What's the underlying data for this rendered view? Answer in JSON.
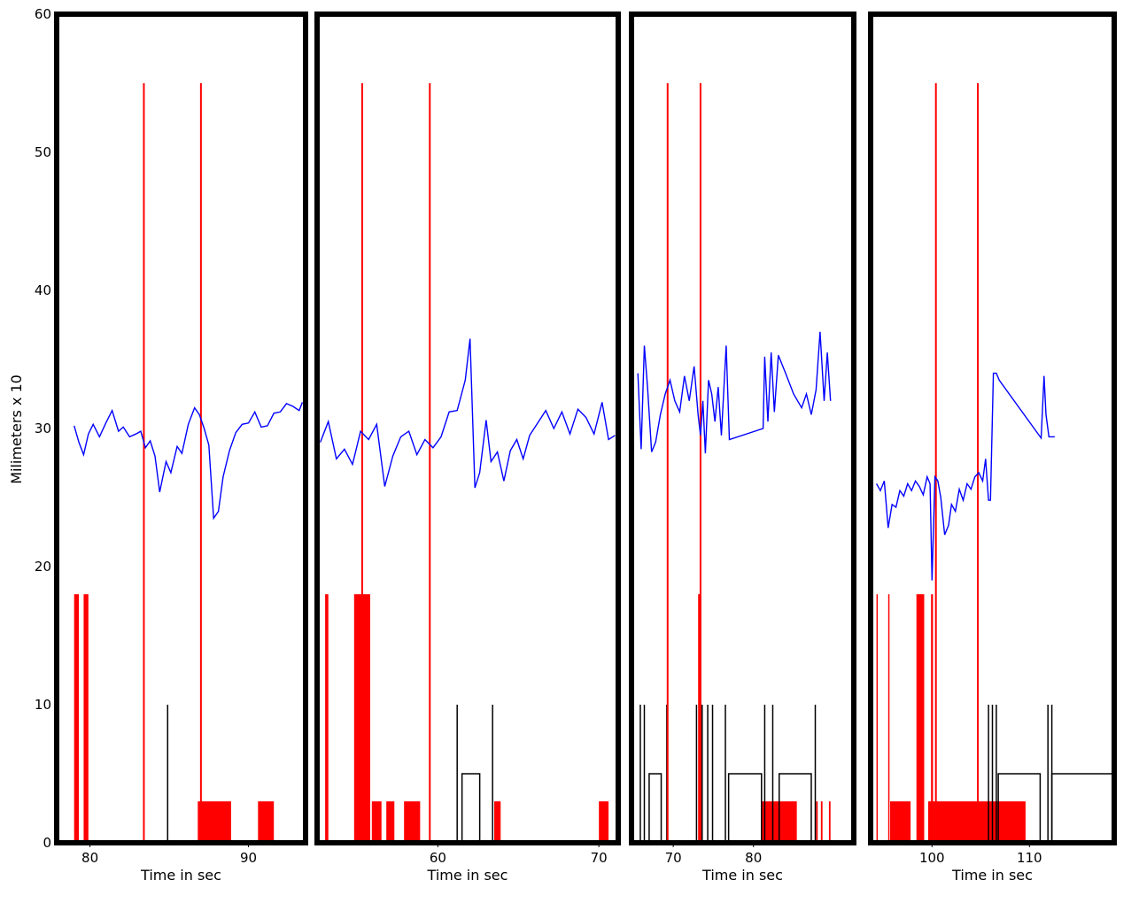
{
  "colors": {
    "trace": "#0000ff",
    "event": "#ff0000",
    "marker": "#000000",
    "frame": "#000000"
  },
  "ylabel": "Milimeters x 10",
  "yticks": [
    0,
    10,
    20,
    30,
    40,
    50,
    60
  ],
  "chart_data": [
    {
      "type": "line",
      "panel": 1,
      "xlabel": "Time in sec",
      "xlim": [
        77.9,
        93.6
      ],
      "ylim": [
        0,
        60
      ],
      "xticks": [
        80,
        90
      ],
      "grid": false,
      "series": [
        {
          "kind": "position",
          "color": "blue",
          "x": [
            79.0,
            79.3,
            79.6,
            79.9,
            80.2,
            80.6,
            81.0,
            81.4,
            81.8,
            82.1,
            82.5,
            82.9,
            83.2,
            83.5,
            83.8,
            84.1,
            84.4,
            84.8,
            85.1,
            85.5,
            85.8,
            86.2,
            86.6,
            86.9,
            87.2,
            87.5,
            87.8,
            88.1,
            88.4,
            88.8,
            89.2,
            89.6,
            90.0,
            90.4,
            90.8,
            91.2,
            91.6,
            92.0,
            92.4,
            92.8,
            93.2,
            93.4
          ],
          "y": [
            30.2,
            29.0,
            28.1,
            29.6,
            30.3,
            29.4,
            30.4,
            31.3,
            29.8,
            30.1,
            29.4,
            29.6,
            29.8,
            28.6,
            29.1,
            28.0,
            25.4,
            27.6,
            26.8,
            28.7,
            28.2,
            30.3,
            31.5,
            31.0,
            30.0,
            28.8,
            23.5,
            24.0,
            26.5,
            28.4,
            29.7,
            30.3,
            30.4,
            31.2,
            30.1,
            30.2,
            31.1,
            31.2,
            31.8,
            31.6,
            31.3,
            31.9
          ]
        },
        {
          "kind": "event-lines",
          "color": "red",
          "x": [
            83.4,
            87.0
          ],
          "height": 55
        },
        {
          "kind": "event-bars",
          "color": "red",
          "segments": [
            [
              79.0,
              79.3,
              18
            ],
            [
              79.6,
              79.9,
              18
            ],
            [
              86.8,
              88.9,
              3
            ],
            [
              90.6,
              91.6,
              3
            ]
          ]
        },
        {
          "kind": "markers",
          "color": "black",
          "spikes": [
            [
              84.9,
              10
            ]
          ],
          "boxes": []
        }
      ]
    },
    {
      "type": "line",
      "panel": 2,
      "xlabel": "Time in sec",
      "xlim": [
        52.5,
        71.2
      ],
      "ylim": [
        0,
        60
      ],
      "xticks": [
        60,
        70
      ],
      "grid": false,
      "series": [
        {
          "kind": "position",
          "color": "blue",
          "x": [
            52.7,
            53.2,
            53.7,
            54.2,
            54.7,
            55.2,
            55.7,
            56.2,
            56.7,
            57.2,
            57.7,
            58.2,
            58.7,
            59.2,
            59.7,
            60.2,
            60.7,
            61.2,
            61.7,
            62.0,
            62.3,
            62.6,
            63.0,
            63.3,
            63.7,
            64.1,
            64.5,
            64.9,
            65.3,
            65.7,
            66.2,
            66.7,
            67.2,
            67.7,
            68.2,
            68.7,
            69.2,
            69.7,
            70.2,
            70.6,
            71.0
          ],
          "y": [
            29.0,
            30.5,
            27.8,
            28.5,
            27.4,
            29.8,
            29.2,
            30.3,
            25.8,
            28.0,
            29.4,
            29.8,
            28.1,
            29.2,
            28.6,
            29.4,
            31.2,
            31.3,
            33.5,
            36.5,
            25.7,
            26.8,
            30.6,
            27.6,
            28.3,
            26.2,
            28.4,
            29.2,
            27.8,
            29.5,
            30.4,
            31.3,
            30.0,
            31.2,
            29.6,
            31.4,
            30.8,
            29.6,
            31.9,
            29.2,
            29.5
          ]
        },
        {
          "kind": "event-lines",
          "color": "red",
          "x": [
            55.3,
            59.5
          ],
          "height": 55
        },
        {
          "kind": "event-bars",
          "color": "red",
          "segments": [
            [
              53.0,
              53.2,
              18
            ],
            [
              54.8,
              55.8,
              18
            ],
            [
              55.9,
              56.5,
              3
            ],
            [
              56.8,
              57.3,
              3
            ],
            [
              57.9,
              58.9,
              3
            ],
            [
              63.5,
              63.9,
              3
            ],
            [
              70.0,
              70.6,
              3
            ]
          ]
        },
        {
          "kind": "markers",
          "color": "black",
          "spikes": [
            [
              61.2,
              10
            ],
            [
              63.4,
              10
            ]
          ],
          "boxes": [
            [
              61.5,
              62.6,
              5
            ]
          ]
        }
      ]
    },
    {
      "type": "line",
      "panel": 3,
      "xlabel": "Time in sec",
      "xlim": [
        64.8,
        92.5
      ],
      "ylim": [
        0,
        60
      ],
      "xticks": [
        70,
        80
      ],
      "grid": false,
      "series": [
        {
          "kind": "position",
          "color": "blue",
          "x": [
            65.6,
            66.0,
            66.4,
            66.8,
            67.3,
            67.8,
            68.4,
            69.0,
            69.6,
            70.2,
            70.8,
            71.4,
            72.0,
            72.6,
            73.1,
            73.4,
            73.7,
            74.0,
            74.4,
            74.8,
            75.2,
            75.6,
            76.0,
            76.6,
            77.0,
            81.2,
            81.4,
            81.8,
            82.2,
            82.6,
            83.1,
            84.0,
            85.0,
            86.0,
            86.6,
            87.2,
            87.8,
            88.3,
            88.8,
            89.2,
            89.6
          ],
          "y": [
            34.0,
            28.5,
            36.0,
            33.0,
            28.3,
            29.0,
            31.0,
            32.5,
            33.5,
            32.0,
            31.2,
            33.8,
            32.0,
            34.5,
            31.0,
            29.5,
            32.0,
            28.2,
            33.5,
            32.5,
            30.5,
            33.0,
            29.5,
            36.0,
            29.2,
            30.0,
            35.2,
            30.5,
            35.5,
            31.2,
            35.3,
            34.0,
            32.5,
            31.5,
            32.5,
            31.0,
            32.8,
            37.0,
            32.0,
            35.5,
            32.0
          ]
        },
        {
          "kind": "event-lines",
          "color": "red",
          "x": [
            69.3,
            73.4
          ],
          "height": 55
        },
        {
          "kind": "event-bars",
          "color": "red",
          "segments": [
            [
              73.1,
              73.4,
              18
            ],
            [
              81.0,
              85.4,
              3
            ],
            [
              87.8,
              88.0,
              3
            ],
            [
              88.4,
              88.6,
              3
            ],
            [
              89.4,
              89.6,
              3
            ]
          ]
        },
        {
          "kind": "markers",
          "color": "black",
          "spikes": [
            [
              65.9,
              10
            ],
            [
              66.4,
              10
            ],
            [
              69.2,
              10
            ],
            [
              72.9,
              10
            ],
            [
              73.6,
              10
            ],
            [
              74.3,
              10
            ],
            [
              74.9,
              10
            ],
            [
              76.5,
              10
            ],
            [
              81.4,
              10
            ],
            [
              82.4,
              10
            ],
            [
              87.7,
              10
            ]
          ],
          "boxes": [
            [
              67.0,
              68.5,
              5
            ],
            [
              76.9,
              81.0,
              5
            ],
            [
              83.2,
              87.2,
              5
            ]
          ]
        }
      ]
    },
    {
      "type": "line",
      "panel": 4,
      "xlabel": "Time in sec",
      "xlim": [
        93.7,
        118.7
      ],
      "ylim": [
        0,
        60
      ],
      "xticks": [
        100,
        110
      ],
      "grid": false,
      "series": [
        {
          "kind": "position",
          "color": "blue",
          "x": [
            94.3,
            94.7,
            95.1,
            95.5,
            95.9,
            96.3,
            96.7,
            97.1,
            97.5,
            97.9,
            98.3,
            98.7,
            99.1,
            99.5,
            99.8,
            100.0,
            100.3,
            100.6,
            100.9,
            101.3,
            101.7,
            102.0,
            102.4,
            102.8,
            103.2,
            103.6,
            104.0,
            104.4,
            104.8,
            105.2,
            105.5,
            105.8,
            106.0,
            106.3,
            106.6,
            106.9,
            111.2,
            111.5,
            111.7,
            112.0,
            112.6
          ],
          "y": [
            26.0,
            25.5,
            26.2,
            22.8,
            24.5,
            24.3,
            25.5,
            25.1,
            26.0,
            25.5,
            26.2,
            25.8,
            25.2,
            26.5,
            26.0,
            19.0,
            26.5,
            26.2,
            25.0,
            22.3,
            23.0,
            24.5,
            24.0,
            25.6,
            24.8,
            26.0,
            25.6,
            26.5,
            26.8,
            26.2,
            27.8,
            24.8,
            24.8,
            34.0,
            34.0,
            33.5,
            29.3,
            33.8,
            31.0,
            29.4,
            29.4
          ]
        },
        {
          "kind": "event-lines",
          "color": "red",
          "x": [
            100.4,
            104.7
          ],
          "height": 55
        },
        {
          "kind": "event-bars",
          "color": "red",
          "segments": [
            [
              94.3,
              94.4,
              18
            ],
            [
              95.5,
              95.6,
              18
            ],
            [
              95.7,
              97.8,
              3
            ],
            [
              98.4,
              99.2,
              18
            ],
            [
              99.9,
              100.1,
              18
            ],
            [
              99.6,
              109.6,
              3
            ]
          ]
        },
        {
          "kind": "markers",
          "color": "black",
          "spikes": [
            [
              105.8,
              10
            ],
            [
              106.2,
              10
            ],
            [
              106.6,
              10
            ],
            [
              111.9,
              10
            ],
            [
              112.3,
              10
            ]
          ],
          "boxes": [
            [
              106.8,
              111.1,
              5
            ],
            [
              112.3,
              118.7,
              5
            ]
          ]
        }
      ]
    }
  ]
}
